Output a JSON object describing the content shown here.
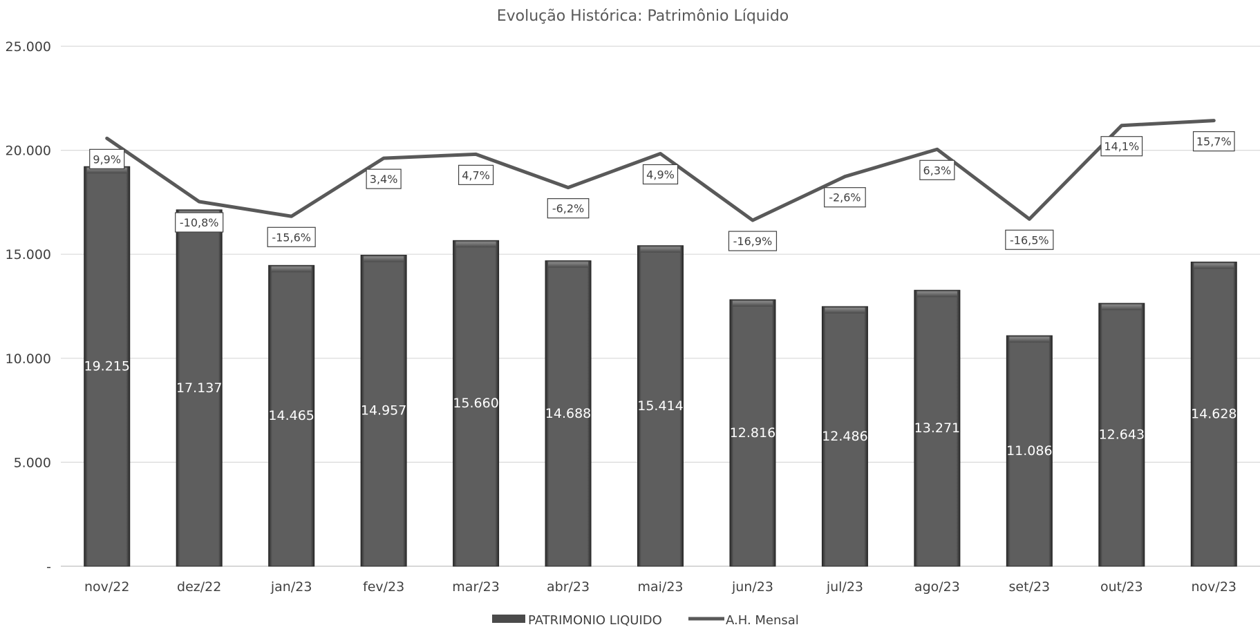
{
  "chart_data": {
    "type": "bar",
    "title": "Evolução Histórica: Patrimônio Líquido",
    "categories": [
      "nov/22",
      "dez/22",
      "jan/23",
      "fev/23",
      "mar/23",
      "abr/23",
      "mai/23",
      "jun/23",
      "jul/23",
      "ago/23",
      "set/23",
      "out/23",
      "nov/23"
    ],
    "series": [
      {
        "name": "PATRIMONIO LIQUIDO",
        "type": "bar",
        "values": [
          19215,
          17137,
          14465,
          14957,
          15660,
          14688,
          15414,
          12816,
          12486,
          13271,
          11086,
          12643,
          14628
        ],
        "labels": [
          "19.215",
          "17.137",
          "14.465",
          "14.957",
          "15.660",
          "14.688",
          "15.414",
          "12.816",
          "12.486",
          "13.271",
          "11.086",
          "12.643",
          "14.628"
        ]
      },
      {
        "name": "A.H. Mensal",
        "type": "line",
        "axis": "secondary",
        "values": [
          9.9,
          -10.8,
          -15.6,
          3.4,
          4.7,
          -6.2,
          4.9,
          -16.9,
          -2.6,
          6.3,
          -16.5,
          14.1,
          15.7
        ],
        "labels": [
          "9,9%",
          "-10,8%",
          "-15,6%",
          "3,4%",
          "4,7%",
          "-6,2%",
          "4,9%",
          "-16,9%",
          "-2,6%",
          "6,3%",
          "-16,5%",
          "14,1%",
          "15,7%"
        ]
      }
    ],
    "ylim": [
      0,
      25000
    ],
    "yticks": [
      "-",
      "5.000",
      "10.000",
      "15.000",
      "20.000",
      "25.000"
    ],
    "y2lim": [
      -130,
      40
    ],
    "grid": true,
    "legend": "bottom",
    "colors": {
      "bar": "#5a5a5a",
      "line": "#595959",
      "grid": "#d9d9d9"
    }
  }
}
